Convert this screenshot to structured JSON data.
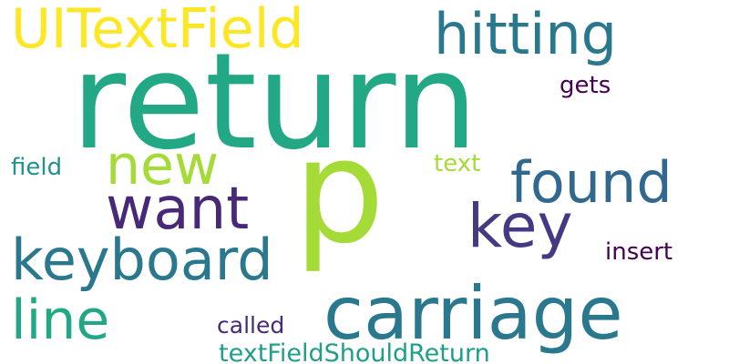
{
  "word_cloud": {
    "words": [
      {
        "text": "return",
        "color": "#22a884"
      },
      {
        "text": "p",
        "color": "#a5db36"
      },
      {
        "text": "carriage",
        "color": "#2a788e"
      },
      {
        "text": "UITextField",
        "color": "#fde725"
      },
      {
        "text": "hitting",
        "color": "#2a788e"
      },
      {
        "text": "keyboard",
        "color": "#2a788e"
      },
      {
        "text": "found",
        "color": "#31688e"
      },
      {
        "text": "want",
        "color": "#482878"
      },
      {
        "text": "key",
        "color": "#443983"
      },
      {
        "text": "new",
        "color": "#a5db36"
      },
      {
        "text": "line",
        "color": "#22a884"
      },
      {
        "text": "textFieldShouldReturn",
        "color": "#1f9e89"
      },
      {
        "text": "insert",
        "color": "#440154"
      },
      {
        "text": "called",
        "color": "#482878"
      },
      {
        "text": "gets",
        "color": "#440154"
      },
      {
        "text": "text",
        "color": "#a5db36"
      },
      {
        "text": "field",
        "color": "#21918c"
      }
    ]
  }
}
